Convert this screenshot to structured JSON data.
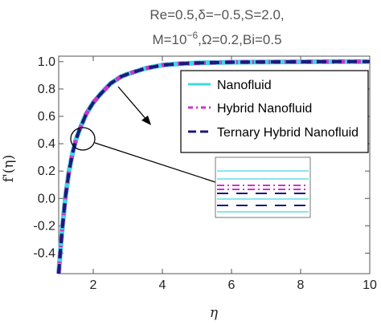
{
  "chart_data": {
    "type": "line",
    "title_line1": "Re=0.5,δ=−0.5,S=2.0,",
    "title_line2_pre": "M=10",
    "title_line2_exp": "−6",
    "title_line2_post": ",Ω=0.2,Bi=0.5",
    "xlabel": "η",
    "ylabel": "f'(η)",
    "xlim": [
      1,
      10
    ],
    "ylim": [
      -0.55,
      1.0
    ],
    "x_ticks": [
      "2",
      "4",
      "6",
      "8",
      "10"
    ],
    "y_ticks": [
      "-0.4",
      "-0.2",
      "0.0",
      "0.2",
      "0.4",
      "0.6",
      "0.8",
      "1.0"
    ],
    "x": [
      1.0,
      1.05,
      1.1,
      1.2,
      1.3,
      1.4,
      1.5,
      1.6,
      1.7,
      1.8,
      2.0,
      2.2,
      2.5,
      2.8,
      3.0,
      3.5,
      4.0,
      4.5,
      5.0,
      6.0,
      7.0,
      8.0,
      9.0,
      10.0
    ],
    "series": [
      {
        "name": "Nanofluid",
        "color": "#40d7e0",
        "style": "solid",
        "values": [
          -0.55,
          -0.38,
          -0.23,
          0.02,
          0.2,
          0.33,
          0.43,
          0.5,
          0.56,
          0.62,
          0.7,
          0.76,
          0.84,
          0.89,
          0.91,
          0.95,
          0.975,
          0.985,
          0.99,
          0.996,
          0.998,
          0.999,
          1.0,
          1.0
        ]
      },
      {
        "name": "Hybrid Nanofluid",
        "color": "#cc33cc",
        "style": "dashdot",
        "values": [
          -0.55,
          -0.38,
          -0.23,
          0.02,
          0.2,
          0.33,
          0.43,
          0.5,
          0.56,
          0.62,
          0.7,
          0.76,
          0.84,
          0.89,
          0.91,
          0.95,
          0.975,
          0.985,
          0.99,
          0.996,
          0.998,
          0.999,
          1.0,
          1.0
        ]
      },
      {
        "name": "Ternary Hybrid Nanofluid",
        "color": "#1a1a7a",
        "style": "dashed",
        "values": [
          -0.55,
          -0.38,
          -0.23,
          0.02,
          0.2,
          0.33,
          0.43,
          0.5,
          0.56,
          0.62,
          0.7,
          0.76,
          0.84,
          0.89,
          0.91,
          0.95,
          0.975,
          0.985,
          0.99,
          0.996,
          0.998,
          0.999,
          1.0,
          1.0
        ]
      }
    ],
    "legend_position": "top-right",
    "grid": false,
    "inset": "zoomed view of the three curves near η≈1.6"
  }
}
